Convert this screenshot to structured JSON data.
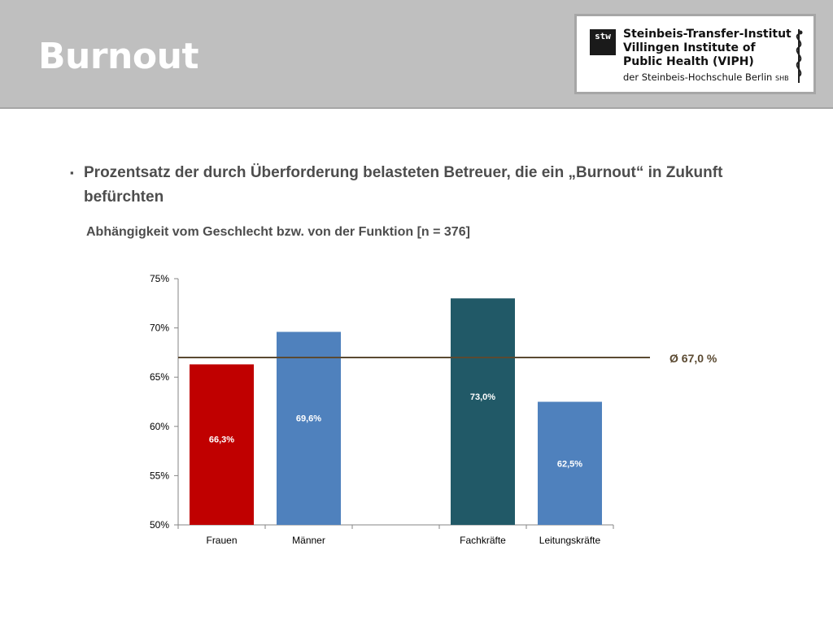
{
  "slide": {
    "title": "Burnout",
    "bullet": "Prozentsatz der durch Überforderung belasteten Betreuer, die ein „Burnout“ in Zukunft befürchten",
    "bullet_marker": "▪",
    "subtitle": "Abhängigkeit vom Geschlecht bzw. von der Funktion  [n = 376]"
  },
  "logo": {
    "mark_top": "stw",
    "line_1": "Steinbeis-Transfer-Institut",
    "line_2": "Villingen Institute of",
    "line_3": "Public Health (VIPH)",
    "line_4": "der Steinbeis-Hochschule Berlin",
    "line_4_suffix": "SHB"
  },
  "chart_data": {
    "type": "bar",
    "categories": [
      "Frauen",
      "Männer",
      "",
      "Fachkräfte",
      "Leitungskräfte"
    ],
    "values": [
      66.3,
      69.6,
      null,
      73.0,
      62.5
    ],
    "data_labels": [
      "66,3%",
      "69,6%",
      "",
      "73,0%",
      "62,5%"
    ],
    "bar_colors": [
      "#c00000",
      "#4f81bd",
      "",
      "#215967",
      "#4f81bd"
    ],
    "ylim": [
      50,
      75
    ],
    "yticks": [
      50,
      55,
      60,
      65,
      70,
      75
    ],
    "ytick_labels": [
      "50%",
      "55%",
      "60%",
      "65%",
      "70%",
      "75%"
    ],
    "reference_line": {
      "value": 67.0,
      "label": "Ø 67,0 %",
      "color": "#5b4a32"
    },
    "grid": false
  }
}
